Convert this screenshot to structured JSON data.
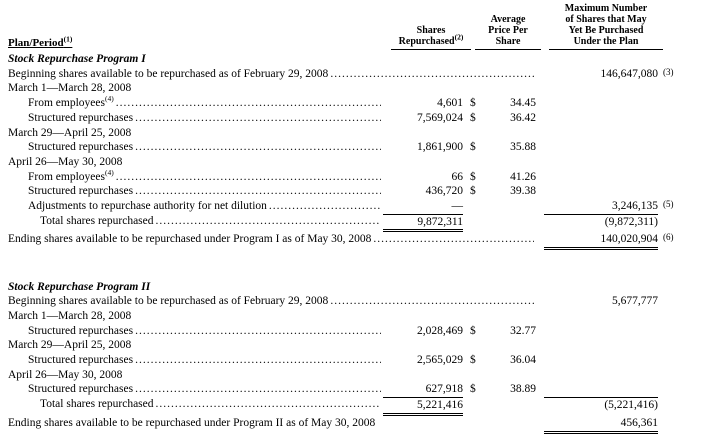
{
  "document": {
    "headers": {
      "plan_period": "Plan/Period",
      "plan_period_sup": "(1)",
      "shares_lines": [
        "Shares",
        "Repurchased"
      ],
      "shares_sup": "(2)",
      "price_lines": [
        "Average",
        "Price Per",
        "Share"
      ],
      "max_lines": [
        "Maximum Number",
        "of Shares that May",
        "Yet Be Purchased",
        "Under the Plan"
      ]
    },
    "rows": [
      {
        "label": "Stock Repurchase Program I",
        "style": "section"
      },
      {
        "label": "Beginning shares available to be repurchased as of February 29, 2008",
        "leaders": true,
        "max": "146,647,080",
        "ref": "(3)"
      },
      {
        "label": "March 1—March 28, 2008"
      },
      {
        "label": "From employees",
        "sup": "(4)",
        "level": 1,
        "leaders": true,
        "shares": "4,601",
        "dollar": "$",
        "price": "34.45"
      },
      {
        "label": "Structured repurchases",
        "level": 1,
        "leaders": true,
        "shares": "7,569,024",
        "dollar": "$",
        "price": "36.42"
      },
      {
        "label": "March 29—April 25, 2008"
      },
      {
        "label": "Structured repurchases",
        "level": 1,
        "leaders": true,
        "shares": "1,861,900",
        "dollar": "$",
        "price": "35.88"
      },
      {
        "label": "April 26—May 30, 2008"
      },
      {
        "label": "From employees",
        "sup": "(4)",
        "level": 1,
        "leaders": true,
        "shares": "66",
        "dollar": "$",
        "price": "41.26"
      },
      {
        "label": "Structured repurchases",
        "level": 1,
        "leaders": true,
        "shares": "436,720",
        "dollar": "$",
        "price": "39.38"
      },
      {
        "label": "Adjustments to repurchase authority for net dilution",
        "level": 1,
        "leaders": true,
        "shares": "—",
        "max": "3,246,135",
        "ref": "(5)"
      },
      {
        "label": "Total shares repurchased",
        "level": 2,
        "leaders": true,
        "shares": "9,872,311",
        "shares_top": true,
        "shares_double": true,
        "max": "(9,872,311)",
        "max_top": true
      },
      {
        "label": "Ending shares available to be repurchased under Program I as of May 30, 2008",
        "leaders": true,
        "max": "140,020,904",
        "max_double": true,
        "ref": "(6)"
      },
      {
        "type": "spacer"
      },
      {
        "type": "spacer"
      },
      {
        "label": "Stock Repurchase Program II",
        "style": "section"
      },
      {
        "label": "Beginning shares available to be repurchased as of February 29, 2008",
        "leaders": true,
        "max": "5,677,777"
      },
      {
        "label": "March 1—March 28, 2008"
      },
      {
        "label": "Structured repurchases",
        "level": 1,
        "leaders": true,
        "shares": "2,028,469",
        "dollar": "$",
        "price": "32.77"
      },
      {
        "label": "March 29—April 25, 2008"
      },
      {
        "label": "Structured repurchases",
        "level": 1,
        "leaders": true,
        "shares": "2,565,029",
        "dollar": "$",
        "price": "36.04"
      },
      {
        "label": "April 26—May 30, 2008"
      },
      {
        "label": "Structured repurchases",
        "level": 1,
        "leaders": true,
        "shares": "627,918",
        "dollar": "$",
        "price": "38.89"
      },
      {
        "label": "Total shares repurchased",
        "level": 2,
        "leaders": true,
        "shares": "5,221,416",
        "shares_top": true,
        "shares_double": true,
        "max": "(5,221,416)",
        "max_top": true
      },
      {
        "label": "Ending shares available to be repurchased under Program II as of May 30, 2008",
        "max": "456,361",
        "max_double": true
      }
    ]
  }
}
